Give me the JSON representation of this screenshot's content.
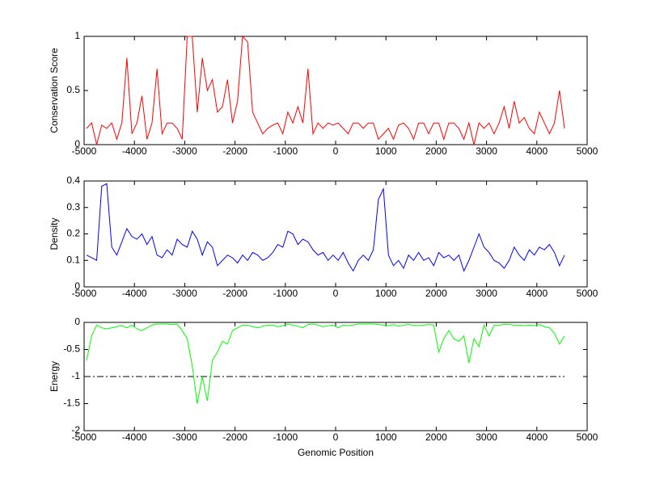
{
  "chart_data": [
    {
      "type": "line",
      "ylabel": "Conservation Score",
      "xlim": [
        -5000,
        5000
      ],
      "ylim": [
        0,
        1
      ],
      "xticks": [
        -5000,
        -4000,
        -3000,
        -2000,
        -1000,
        0,
        1000,
        2000,
        3000,
        4000,
        5000
      ],
      "yticks": [
        0,
        0.5,
        1
      ],
      "series": [
        {
          "color": "#ff0000",
          "x": [
            -4950,
            -4850,
            -4750,
            -4650,
            -4550,
            -4450,
            -4350,
            -4250,
            -4150,
            -4050,
            -3950,
            -3850,
            -3750,
            -3650,
            -3550,
            -3450,
            -3350,
            -3250,
            -3150,
            -3050,
            -2950,
            -2850,
            -2750,
            -2650,
            -2550,
            -2450,
            -2350,
            -2250,
            -2150,
            -2050,
            -1950,
            -1850,
            -1750,
            -1650,
            -1550,
            -1450,
            -1350,
            -1250,
            -1150,
            -1050,
            -950,
            -850,
            -750,
            -650,
            -550,
            -450,
            -350,
            -250,
            -150,
            -50,
            50,
            150,
            250,
            350,
            450,
            550,
            650,
            750,
            850,
            950,
            1050,
            1150,
            1250,
            1350,
            1450,
            1550,
            1650,
            1750,
            1850,
            1950,
            2050,
            2150,
            2250,
            2350,
            2450,
            2550,
            2650,
            2750,
            2850,
            2950,
            3050,
            3150,
            3250,
            3350,
            3450,
            3550,
            3650,
            3750,
            3850,
            3950,
            4050,
            4150,
            4250,
            4350,
            4450,
            4550
          ],
          "values": [
            0.15,
            0.2,
            0,
            0.18,
            0.15,
            0.2,
            0.05,
            0.2,
            0.8,
            0.1,
            0.2,
            0.45,
            0.05,
            0.2,
            0.7,
            0.1,
            0.2,
            0.2,
            0.15,
            0.05,
            1,
            1,
            0.3,
            0.8,
            0.5,
            0.6,
            0.3,
            0.35,
            0.6,
            0.2,
            0.4,
            1,
            0.95,
            0.3,
            0.2,
            0.1,
            0.15,
            0.18,
            0.2,
            0.1,
            0.3,
            0.2,
            0.35,
            0.2,
            0.7,
            0.1,
            0.2,
            0.15,
            0.2,
            0.18,
            0.2,
            0.15,
            0.1,
            0.2,
            0.2,
            0.15,
            0.2,
            0.2,
            0.05,
            0.1,
            0.15,
            0.05,
            0.18,
            0.2,
            0.15,
            0.05,
            0.2,
            0.2,
            0.1,
            0.2,
            0.2,
            0.05,
            0.2,
            0.2,
            0.15,
            0.05,
            0.2,
            0,
            0.2,
            0.15,
            0.2,
            0.1,
            0.2,
            0.35,
            0.15,
            0.4,
            0.2,
            0.25,
            0.15,
            0.1,
            0.3,
            0.2,
            0.1,
            0.2,
            0.5,
            0.15
          ]
        }
      ]
    },
    {
      "type": "line",
      "ylabel": "Density",
      "xlim": [
        -5000,
        5000
      ],
      "ylim": [
        0,
        0.4
      ],
      "xticks": [
        -5000,
        -4000,
        -3000,
        -2000,
        -1000,
        0,
        1000,
        2000,
        3000,
        4000,
        5000
      ],
      "yticks": [
        0,
        0.1,
        0.2,
        0.3,
        0.4
      ],
      "series": [
        {
          "color": "#0000ff",
          "x": [
            -4950,
            -4850,
            -4750,
            -4650,
            -4550,
            -4450,
            -4350,
            -4250,
            -4150,
            -4050,
            -3950,
            -3850,
            -3750,
            -3650,
            -3550,
            -3450,
            -3350,
            -3250,
            -3150,
            -3050,
            -2950,
            -2850,
            -2750,
            -2650,
            -2550,
            -2450,
            -2350,
            -2250,
            -2150,
            -2050,
            -1950,
            -1850,
            -1750,
            -1650,
            -1550,
            -1450,
            -1350,
            -1250,
            -1150,
            -1050,
            -950,
            -850,
            -750,
            -650,
            -550,
            -450,
            -350,
            -250,
            -150,
            -50,
            50,
            150,
            250,
            350,
            450,
            550,
            650,
            750,
            850,
            950,
            1050,
            1150,
            1250,
            1350,
            1450,
            1550,
            1650,
            1750,
            1850,
            1950,
            2050,
            2150,
            2250,
            2350,
            2450,
            2550,
            2650,
            2750,
            2850,
            2950,
            3050,
            3150,
            3250,
            3350,
            3450,
            3550,
            3650,
            3750,
            3850,
            3950,
            4050,
            4150,
            4250,
            4350,
            4450,
            4550
          ],
          "values": [
            0.12,
            0.11,
            0.1,
            0.38,
            0.39,
            0.15,
            0.12,
            0.17,
            0.22,
            0.19,
            0.18,
            0.2,
            0.16,
            0.19,
            0.12,
            0.11,
            0.14,
            0.12,
            0.18,
            0.16,
            0.15,
            0.21,
            0.18,
            0.12,
            0.17,
            0.15,
            0.08,
            0.1,
            0.12,
            0.11,
            0.09,
            0.12,
            0.1,
            0.13,
            0.12,
            0.1,
            0.11,
            0.13,
            0.16,
            0.15,
            0.21,
            0.2,
            0.16,
            0.18,
            0.17,
            0.14,
            0.12,
            0.13,
            0.1,
            0.12,
            0.1,
            0.13,
            0.09,
            0.06,
            0.1,
            0.12,
            0.1,
            0.14,
            0.33,
            0.37,
            0.12,
            0.08,
            0.1,
            0.07,
            0.12,
            0.1,
            0.13,
            0.1,
            0.11,
            0.08,
            0.13,
            0.11,
            0.12,
            0.1,
            0.12,
            0.06,
            0.1,
            0.15,
            0.2,
            0.15,
            0.13,
            0.1,
            0.09,
            0.07,
            0.1,
            0.15,
            0.12,
            0.1,
            0.14,
            0.12,
            0.15,
            0.14,
            0.16,
            0.13,
            0.08,
            0.12
          ]
        }
      ]
    },
    {
      "type": "line",
      "ylabel": "Energy",
      "xlabel": "Genomic Position",
      "xlim": [
        -5000,
        5000
      ],
      "ylim": [
        -2,
        0
      ],
      "xticks": [
        -5000,
        -4000,
        -3000,
        -2000,
        -1000,
        0,
        1000,
        2000,
        3000,
        4000,
        5000
      ],
      "yticks": [
        -2,
        -1.5,
        -1,
        -0.5,
        0
      ],
      "reference_line": {
        "y": -1,
        "x": [
          -5000,
          4550
        ]
      },
      "series": [
        {
          "color": "#00ff00",
          "x": [
            -4950,
            -4850,
            -4750,
            -4650,
            -4550,
            -4450,
            -4350,
            -4250,
            -4150,
            -4050,
            -3950,
            -3850,
            -3750,
            -3650,
            -3550,
            -3450,
            -3350,
            -3250,
            -3150,
            -3050,
            -2950,
            -2850,
            -2750,
            -2650,
            -2550,
            -2450,
            -2350,
            -2250,
            -2150,
            -2050,
            -1950,
            -1850,
            -1750,
            -1650,
            -1550,
            -1450,
            -1350,
            -1250,
            -1150,
            -1050,
            -950,
            -850,
            -750,
            -650,
            -550,
            -450,
            -350,
            -250,
            -150,
            -50,
            50,
            150,
            250,
            350,
            450,
            550,
            650,
            750,
            850,
            950,
            1050,
            1150,
            1250,
            1350,
            1450,
            1550,
            1650,
            1750,
            1850,
            1950,
            2050,
            2150,
            2250,
            2350,
            2450,
            2550,
            2650,
            2750,
            2850,
            2950,
            3050,
            3150,
            3250,
            3350,
            3450,
            3550,
            3650,
            3750,
            3850,
            3950,
            4050,
            4150,
            4250,
            4350,
            4450,
            4550
          ],
          "values": [
            -0.7,
            -0.25,
            -0.05,
            -0.1,
            -0.12,
            -0.1,
            -0.08,
            -0.06,
            -0.1,
            -0.05,
            -0.12,
            -0.15,
            -0.1,
            -0.05,
            -0.03,
            -0.03,
            -0.03,
            -0.04,
            -0.03,
            -0.15,
            -0.3,
            -0.8,
            -1.5,
            -1,
            -1.45,
            -0.7,
            -0.55,
            -0.35,
            -0.4,
            -0.15,
            -0.1,
            -0.05,
            -0.05,
            -0.08,
            -0.1,
            -0.07,
            -0.05,
            -0.05,
            -0.08,
            -0.06,
            -0.03,
            -0.05,
            -0.07,
            -0.1,
            -0.04,
            -0.03,
            -0.05,
            -0.08,
            -0.06,
            -0.05,
            -0.1,
            -0.05,
            -0.06,
            -0.05,
            -0.03,
            -0.03,
            -0.03,
            -0.03,
            -0.04,
            -0.05,
            -0.06,
            -0.04,
            -0.07,
            -0.05,
            -0.04,
            -0.05,
            -0.06,
            -0.05,
            -0.04,
            -0.05,
            -0.55,
            -0.3,
            -0.15,
            -0.3,
            -0.35,
            -0.25,
            -0.75,
            -0.3,
            -0.45,
            -0.05,
            -0.25,
            -0.05,
            -0.05,
            -0.04,
            -0.04,
            -0.05,
            -0.05,
            -0.06,
            -0.05,
            -0.06,
            -0.04,
            -0.08,
            -0.1,
            -0.2,
            -0.4,
            -0.25
          ]
        }
      ]
    }
  ]
}
